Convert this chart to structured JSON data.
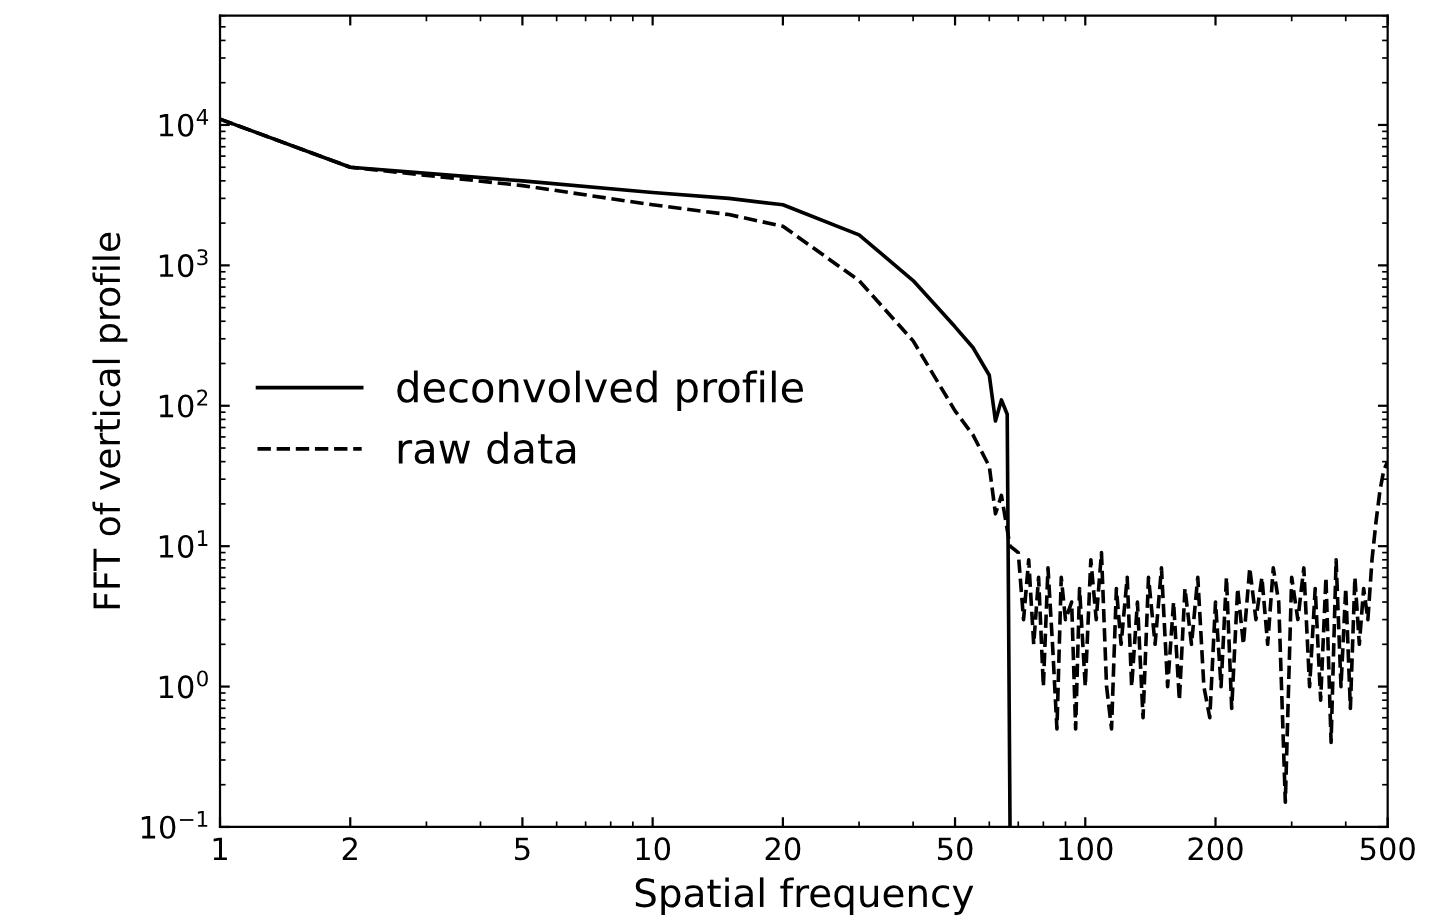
{
  "chart_data": {
    "type": "line",
    "xlabel": "Spatial frequency",
    "ylabel": "FFT of vertical profile",
    "log": "xy",
    "grid": false,
    "legend": "center left",
    "xlim": [
      1,
      500
    ],
    "xticks": [
      1,
      2,
      5,
      10,
      20,
      50,
      100,
      200,
      500
    ],
    "ylim": [
      0.1,
      60000
    ],
    "yticks": [
      {
        "value": 0.1,
        "label": "10$^{−1}$"
      },
      {
        "value": 1,
        "label": "10$^{0}$"
      },
      {
        "value": 10,
        "label": "10$^{1}$"
      },
      {
        "value": 100,
        "label": "10$^{2}$"
      },
      {
        "value": 1000,
        "label": "10$^{3}$"
      },
      {
        "value": 10000,
        "label": "10$^{4}$"
      }
    ],
    "series": [
      {
        "name": "deconvolved profile",
        "color": "#000000",
        "line_style": "solid",
        "x": [
          1,
          2,
          5,
          10,
          15,
          20,
          30,
          40,
          50,
          55,
          60,
          62,
          64,
          66,
          67
        ],
        "values": [
          11000,
          5000,
          4000,
          3300,
          3000,
          2700,
          1650,
          780,
          365,
          260,
          165,
          78,
          110,
          87,
          0.1
        ]
      },
      {
        "name": "raw data",
        "color": "#000000",
        "line_style": "dashed",
        "x": [
          1,
          2,
          5,
          10,
          15,
          20,
          30,
          40,
          50,
          55,
          60,
          62,
          64,
          67,
          70,
          72,
          74,
          76,
          78,
          80,
          82,
          84,
          86,
          88,
          90,
          93,
          95,
          97,
          100,
          103,
          106,
          109,
          112,
          115,
          118,
          121,
          125,
          128,
          132,
          136,
          140,
          145,
          150,
          155,
          160,
          165,
          170,
          176,
          182,
          188,
          194,
          200,
          206,
          212,
          218,
          225,
          232,
          240,
          248,
          256,
          264,
          272,
          280,
          290,
          300,
          310,
          320,
          330,
          340,
          350,
          360,
          370,
          380,
          390,
          400,
          410,
          420,
          430,
          440,
          450,
          460,
          470,
          480,
          490,
          500
        ],
        "values": [
          11000,
          5000,
          3700,
          2700,
          2300,
          1900,
          780,
          290,
          92,
          62,
          37,
          17,
          23,
          10,
          9,
          3,
          8,
          2,
          6,
          1,
          7,
          2,
          0.5,
          6,
          3,
          4,
          0.5,
          5,
          1,
          8,
          3,
          9,
          1,
          0.5,
          5,
          2,
          6,
          1,
          4,
          0.6,
          6,
          2,
          7,
          1,
          4,
          0.8,
          5,
          2,
          6,
          1,
          0.6,
          4,
          1,
          6,
          0.7,
          5,
          2,
          7,
          3,
          6,
          2,
          7,
          4,
          0.15,
          6,
          3,
          7,
          1,
          5,
          0.8,
          6,
          0.4,
          8,
          1,
          5,
          0.7,
          6,
          2,
          5,
          3,
          8,
          15,
          25,
          35,
          40
        ]
      }
    ]
  }
}
